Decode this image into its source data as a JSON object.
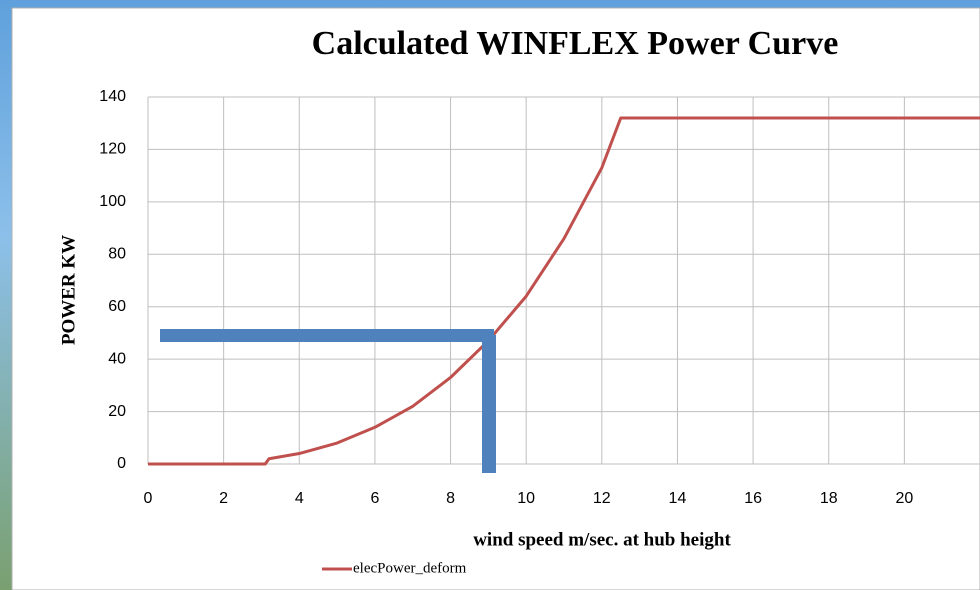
{
  "chart_data": {
    "type": "line",
    "title": "Calculated WINFLEX Power Curve",
    "x_label": "wind speed  m/sec. at hub height",
    "y_label": "POWER KW",
    "x": [
      0,
      3.1,
      3.2,
      4,
      5,
      6,
      7,
      8,
      9,
      10,
      11,
      12,
      12.5,
      22
    ],
    "series": [
      {
        "name": "elecPower_deform",
        "color": "#c0504d",
        "values": [
          0,
          0,
          2,
          4,
          8,
          14,
          22,
          33,
          47,
          64,
          86,
          113,
          132,
          132
        ]
      }
    ],
    "xlim": [
      0,
      22
    ],
    "xticks": [
      0,
      2,
      4,
      6,
      8,
      10,
      12,
      14,
      16,
      18,
      20
    ],
    "ylim": [
      0,
      140
    ],
    "yticks": [
      0,
      20,
      40,
      60,
      80,
      100,
      120,
      140
    ],
    "grid": true,
    "legend": "bottom"
  }
}
